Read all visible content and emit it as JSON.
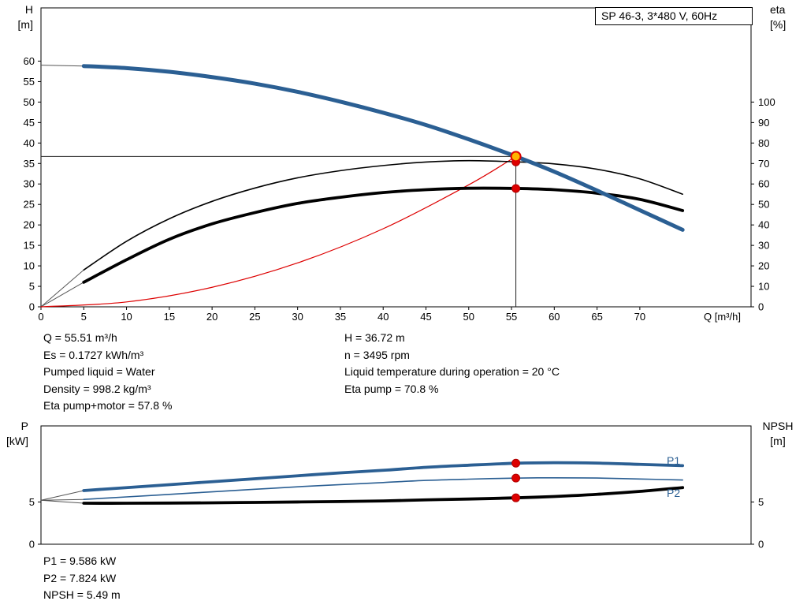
{
  "chart_data": [
    {
      "type": "line",
      "title": "SP 46-3, 3*480 V, 60Hz",
      "xlabel": "Q [m³/h]",
      "ylabel_left": "H [m]",
      "ylabel_right": "eta [%]",
      "ylabel_left_lines": [
        "H",
        "[m]"
      ],
      "ylabel_right_lines": [
        "eta",
        "[%]"
      ],
      "xlim": [
        0,
        83
      ],
      "ylim_left": [
        0,
        73
      ],
      "ylim_right": [
        0,
        146
      ],
      "x_ticks": [
        0,
        5,
        10,
        15,
        20,
        25,
        30,
        35,
        40,
        45,
        50,
        55,
        60,
        65,
        70
      ],
      "y_ticks_left": [
        0,
        5,
        10,
        15,
        20,
        25,
        30,
        35,
        40,
        45,
        50,
        55,
        60
      ],
      "y_ticks_right": [
        0,
        10,
        20,
        30,
        40,
        50,
        60,
        70,
        80,
        90,
        100
      ],
      "grid": false,
      "duty_point": {
        "q": 55.51,
        "h": 36.72
      },
      "series": [
        {
          "name": "system-curve",
          "axis": "left",
          "color": "#dd0000",
          "width": 1.2,
          "points": [
            [
              0,
              0
            ],
            [
              10,
              1.19
            ],
            [
              20,
              4.77
            ],
            [
              30,
              10.72
            ],
            [
              40,
              19.07
            ],
            [
              50,
              29.79
            ],
            [
              55.51,
              36.72
            ]
          ]
        },
        {
          "name": "eta-pump",
          "axis": "right",
          "color": "#000000",
          "width": 1.6,
          "points": [
            [
              5,
              18
            ],
            [
              10,
              32
            ],
            [
              15,
              43
            ],
            [
              20,
              51.5
            ],
            [
              25,
              58
            ],
            [
              30,
              63
            ],
            [
              35,
              66.5
            ],
            [
              40,
              69
            ],
            [
              45,
              70.7
            ],
            [
              50,
              71.4
            ],
            [
              55.51,
              70.8
            ],
            [
              60,
              69.8
            ],
            [
              65,
              67.2
            ],
            [
              70,
              62.5
            ],
            [
              75,
              55
            ]
          ]
        },
        {
          "name": "eta-pump-motor",
          "axis": "right",
          "color": "#000000",
          "width": 3.8,
          "points": [
            [
              5,
              12
            ],
            [
              10,
              23
            ],
            [
              15,
              33
            ],
            [
              20,
              40.5
            ],
            [
              25,
              46
            ],
            [
              30,
              50.5
            ],
            [
              35,
              53.5
            ],
            [
              40,
              55.8
            ],
            [
              45,
              57.2
            ],
            [
              50,
              57.9
            ],
            [
              55.51,
              57.8
            ],
            [
              60,
              57.2
            ],
            [
              65,
              55.5
            ],
            [
              70,
              52.5
            ],
            [
              75,
              47
            ]
          ]
        },
        {
          "name": "head",
          "axis": "left",
          "color": "#2b5f93",
          "width": 5,
          "points": [
            [
              5,
              58.8
            ],
            [
              10,
              58.3
            ],
            [
              15,
              57.4
            ],
            [
              20,
              56.1
            ],
            [
              25,
              54.5
            ],
            [
              30,
              52.5
            ],
            [
              35,
              50.1
            ],
            [
              40,
              47.4
            ],
            [
              45,
              44.4
            ],
            [
              50,
              40.9
            ],
            [
              55.51,
              36.72
            ],
            [
              60,
              33
            ],
            [
              65,
              28.4
            ],
            [
              70,
              23.6
            ],
            [
              75,
              18.8
            ]
          ]
        }
      ],
      "connectors": [
        {
          "axis": "left",
          "points": [
            [
              0,
              59
            ],
            [
              5,
              58.8
            ]
          ]
        },
        {
          "axis": "right",
          "points": [
            [
              0,
              0
            ],
            [
              5,
              18
            ]
          ]
        },
        {
          "axis": "right",
          "points": [
            [
              0,
              0
            ],
            [
              5,
              12
            ]
          ]
        }
      ],
      "markers": [
        {
          "x": 55.51,
          "y": 70.8,
          "axis": "right",
          "style": "point"
        },
        {
          "x": 55.51,
          "y": 57.8,
          "axis": "right",
          "style": "point"
        },
        {
          "x": 55.51,
          "y": 36.72,
          "axis": "left",
          "style": "duty"
        }
      ]
    },
    {
      "type": "line",
      "title": "",
      "xlabel": "",
      "ylabel_left": "P [kW]",
      "ylabel_right": "NPSH [m]",
      "ylabel_left_lines": [
        "P",
        "[kW]"
      ],
      "ylabel_right_lines": [
        "NPSH",
        "[m]"
      ],
      "xlim": [
        0,
        83
      ],
      "ylim_left": [
        0,
        14
      ],
      "ylim_right": [
        0,
        14
      ],
      "x_ticks": [],
      "y_ticks_left": [
        0,
        5
      ],
      "y_ticks_right": [
        0,
        5
      ],
      "grid": false,
      "series": [
        {
          "name": "npsh",
          "axis": "right",
          "color": "#000000",
          "width": 3.8,
          "points": [
            [
              5,
              4.85
            ],
            [
              10,
              4.85
            ],
            [
              15,
              4.87
            ],
            [
              20,
              4.9
            ],
            [
              25,
              4.95
            ],
            [
              30,
              5
            ],
            [
              35,
              5.05
            ],
            [
              40,
              5.12
            ],
            [
              45,
              5.25
            ],
            [
              50,
              5.35
            ],
            [
              55.51,
              5.49
            ],
            [
              60,
              5.65
            ],
            [
              65,
              5.9
            ],
            [
              70,
              6.25
            ],
            [
              75,
              6.7
            ]
          ]
        },
        {
          "name": "p2",
          "label": "P2",
          "axis": "left",
          "color": "#2b5f93",
          "width": 1.6,
          "points": [
            [
              5,
              5.3
            ],
            [
              10,
              5.6
            ],
            [
              15,
              5.9
            ],
            [
              20,
              6.2
            ],
            [
              25,
              6.5
            ],
            [
              30,
              6.8
            ],
            [
              35,
              7.05
            ],
            [
              40,
              7.3
            ],
            [
              45,
              7.55
            ],
            [
              50,
              7.7
            ],
            [
              55.51,
              7.824
            ],
            [
              60,
              7.86
            ],
            [
              65,
              7.83
            ],
            [
              70,
              7.72
            ],
            [
              75,
              7.6
            ]
          ]
        },
        {
          "name": "p1",
          "label": "P1",
          "axis": "left",
          "color": "#2b5f93",
          "width": 3.8,
          "points": [
            [
              5,
              6.35
            ],
            [
              10,
              6.7
            ],
            [
              15,
              7.05
            ],
            [
              20,
              7.4
            ],
            [
              25,
              7.75
            ],
            [
              30,
              8.1
            ],
            [
              35,
              8.45
            ],
            [
              40,
              8.75
            ],
            [
              45,
              9.1
            ],
            [
              50,
              9.35
            ],
            [
              55.51,
              9.586
            ],
            [
              60,
              9.65
            ],
            [
              65,
              9.6
            ],
            [
              70,
              9.45
            ],
            [
              75,
              9.3
            ]
          ]
        }
      ],
      "connectors": [
        {
          "axis": "left",
          "points": [
            [
              0,
              5.2
            ],
            [
              5,
              6.35
            ]
          ]
        },
        {
          "axis": "left",
          "points": [
            [
              0,
              5.2
            ],
            [
              5,
              5.3
            ]
          ]
        },
        {
          "axis": "left",
          "points": [
            [
              0,
              5.2
            ],
            [
              5,
              4.85
            ]
          ]
        }
      ],
      "markers": [
        {
          "x": 55.51,
          "y": 9.586,
          "axis": "left",
          "style": "point"
        },
        {
          "x": 55.51,
          "y": 7.824,
          "axis": "left",
          "style": "point"
        },
        {
          "x": 55.51,
          "y": 5.49,
          "axis": "left",
          "style": "point"
        }
      ]
    }
  ],
  "colors": {
    "curve_blue": "#2b5f93",
    "curve_red": "#dd0000",
    "duty_marker_fill": "#ffb400",
    "operating_marker": "#dd0000"
  },
  "results_top": {
    "left": [
      "Q = 55.51 m³/h",
      "Es = 0.1727 kWh/m³",
      "Pumped liquid = Water",
      "Density = 998.2 kg/m³",
      "Eta pump+motor = 57.8 %"
    ],
    "right": [
      "H = 36.72 m",
      "n = 3495 rpm",
      "Liquid temperature during operation = 20 °C",
      "Eta pump = 70.8 %"
    ]
  },
  "results_bottom": [
    "P1 = 9.586 kW",
    "P2 = 7.824 kW",
    "NPSH = 5.49 m"
  ]
}
